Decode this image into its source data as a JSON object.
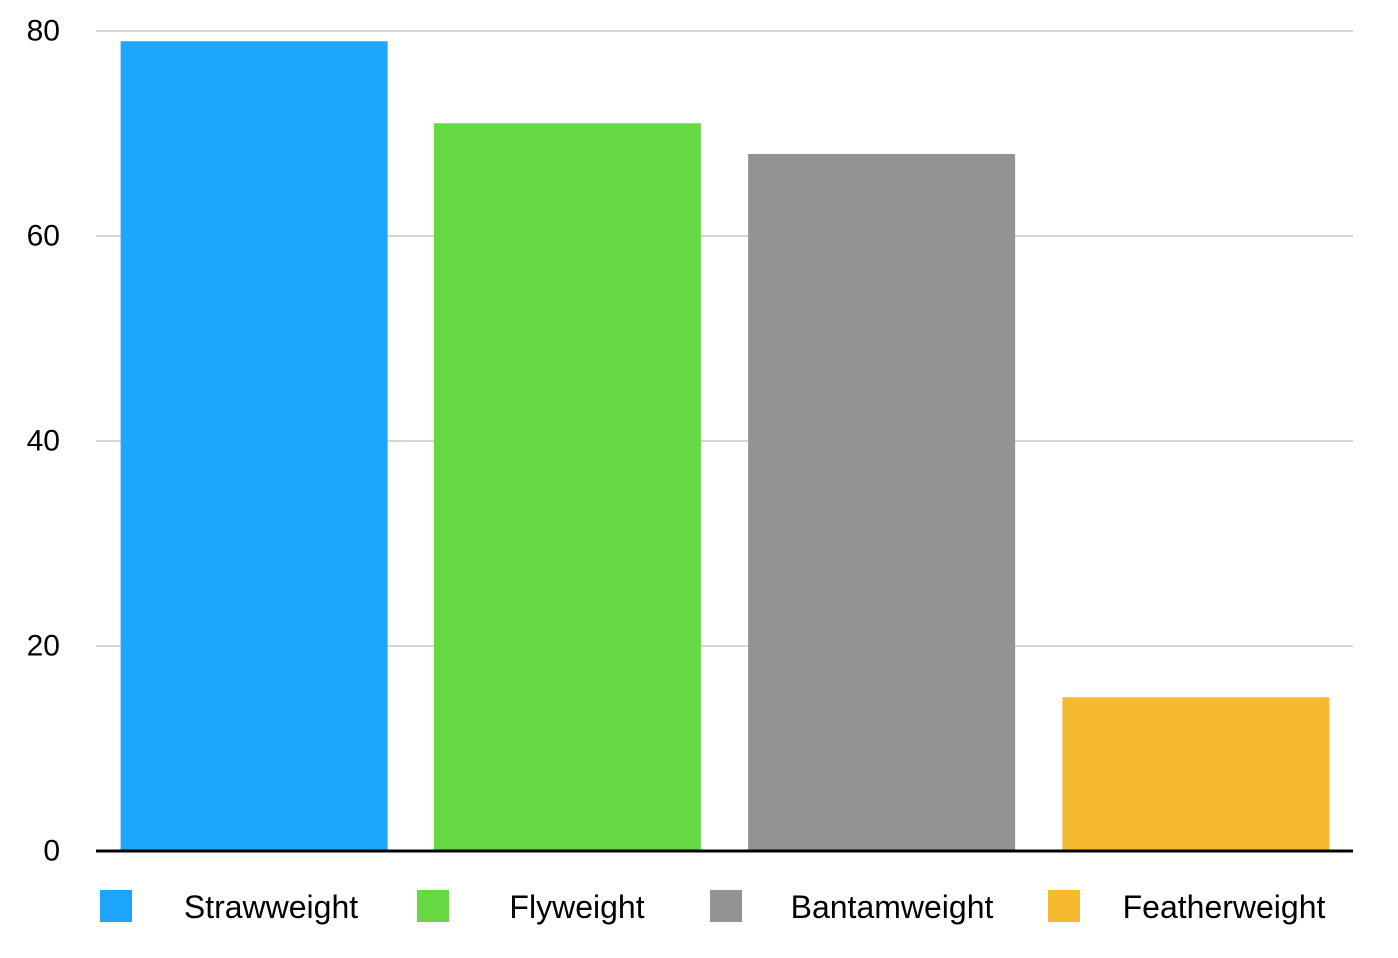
{
  "chart_data": {
    "type": "bar",
    "categories": [
      "Strawweight",
      "Flyweight",
      "Bantamweight",
      "Featherweight"
    ],
    "values": [
      79,
      71,
      68,
      15
    ],
    "colors": [
      "#1ea5fc",
      "#65d844",
      "#939393",
      "#f6b92f"
    ],
    "ylim": [
      0,
      80
    ],
    "yticks": [
      0,
      20,
      40,
      60,
      80
    ],
    "grid": true,
    "legend": "bottom",
    "title": "",
    "xlabel": "",
    "ylabel": ""
  }
}
